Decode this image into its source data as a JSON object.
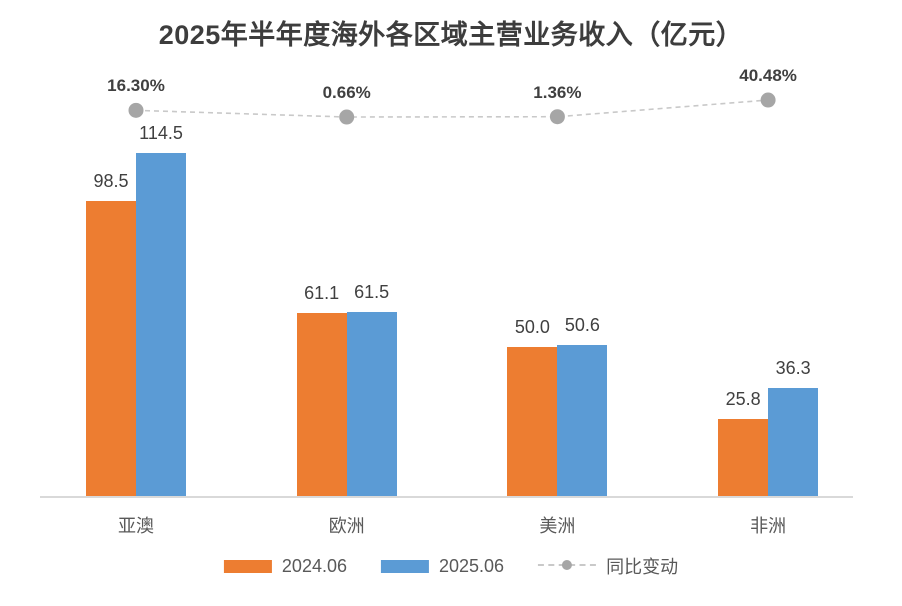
{
  "chart_data": {
    "type": "bar",
    "title": "2025年半年度海外各区域主营业务收入（亿元）",
    "categories": [
      "亚澳",
      "欧洲",
      "美洲",
      "非洲"
    ],
    "series": [
      {
        "name": "2024.06",
        "kind": "bar",
        "color": "#ED7D31",
        "values": [
          98.5,
          61.1,
          50.0,
          25.8
        ],
        "labels": [
          "98.5",
          "61.1",
          "50.0",
          "25.8"
        ]
      },
      {
        "name": "2025.06",
        "kind": "bar",
        "color": "#5B9BD5",
        "values": [
          114.5,
          61.5,
          50.6,
          36.3
        ],
        "labels": [
          "114.5",
          "61.5",
          "50.6",
          "36.3"
        ]
      },
      {
        "name": "同比变动",
        "kind": "line",
        "marker_color": "#A6A6A6",
        "line_color": "#C9C9C9",
        "unit": "%",
        "values": [
          16.3,
          0.66,
          1.36,
          40.48
        ],
        "labels": [
          "16.30%",
          "0.66%",
          "1.36%",
          "40.48%"
        ]
      }
    ],
    "xlabel": "",
    "ylabel": "",
    "value_axis": {
      "visible": false,
      "approx_max": 130
    },
    "secondary_axis": {
      "visible": false,
      "unit": "%"
    },
    "grid": false,
    "legend_position": "bottom",
    "colors": {
      "bar_2024": "#ED7D31",
      "bar_2025": "#5B9BD5",
      "trend_marker": "#A6A6A6",
      "trend_line": "#C9C9C9",
      "title_text": "#3D3D3D",
      "value_label_text": "#404040",
      "category_text": "#595959",
      "axis_line": "#D9D9D9"
    }
  }
}
